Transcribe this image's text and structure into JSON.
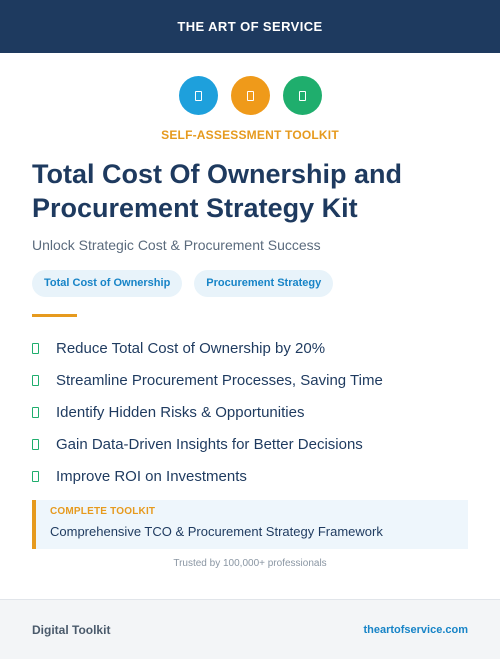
{
  "header": {
    "brand": "THE ART OF SERVICE"
  },
  "icons": [
    {
      "name": "document-icon",
      "color": "#1ea0dc"
    },
    {
      "name": "clipboard-icon",
      "color": "#ef9a1a"
    },
    {
      "name": "checklist-icon",
      "color": "#1fae6d"
    }
  ],
  "kicker": "SELF-ASSESSMENT TOOLKIT",
  "title": "Total Cost Of Ownership and Procurement Strategy Kit",
  "subtitle": "Unlock Strategic Cost & Procurement Success",
  "tags": [
    "Total Cost of Ownership",
    "Procurement Strategy"
  ],
  "benefits": [
    "Reduce Total Cost of Ownership by 20%",
    "Streamline Procurement Processes, Saving Time",
    "Identify Hidden Risks & Opportunities",
    "Gain Data-Driven Insights for Better Decisions",
    "Improve ROI on Investments"
  ],
  "callout": {
    "label": "COMPLETE TOOLKIT",
    "description": "Comprehensive TCO & Procurement Strategy Framework"
  },
  "trusted": "Trusted by 100,000+ professionals",
  "footer": {
    "left": "Digital Toolkit",
    "right": "theartofservice.com"
  },
  "colors": {
    "navy": "#1e3a5f",
    "accent_orange": "#e69a1e",
    "accent_blue": "#1784c7",
    "accent_green": "#1fae6d"
  }
}
